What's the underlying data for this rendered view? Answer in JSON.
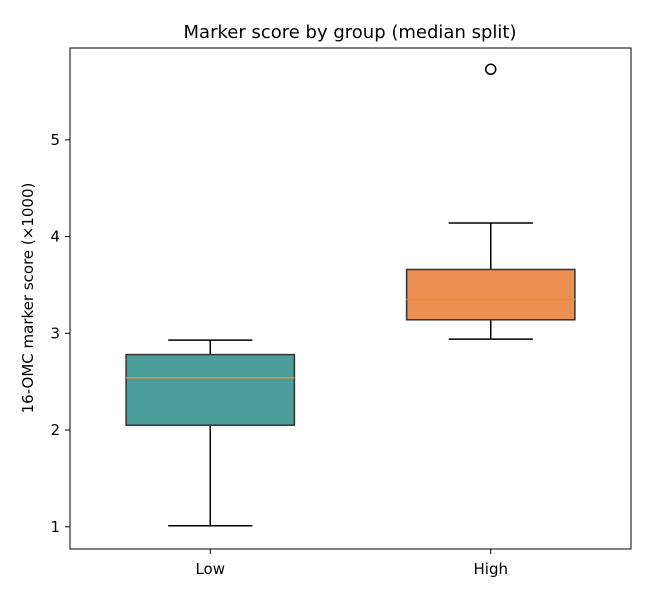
{
  "chart_data": {
    "type": "box",
    "title": "Marker score by group (median split)",
    "xlabel": "",
    "ylabel": "16-OMC marker score (×1000)",
    "ylim": [
      0.77,
      5.95
    ],
    "yticks": [
      1,
      2,
      3,
      4,
      5
    ],
    "grid": false,
    "categories": [
      "Low",
      "High"
    ],
    "series": [
      {
        "category": "Low",
        "color": "#4c9e9b",
        "whisker_low": 1.01,
        "q1": 2.05,
        "median": 2.54,
        "q3": 2.78,
        "whisker_high": 2.93,
        "outliers": []
      },
      {
        "category": "High",
        "color": "#eb8f52",
        "whisker_low": 2.94,
        "q1": 3.14,
        "median": 3.35,
        "q3": 3.66,
        "whisker_high": 4.14,
        "outliers": [
          5.73
        ]
      }
    ],
    "median_color": "#f08a24"
  }
}
